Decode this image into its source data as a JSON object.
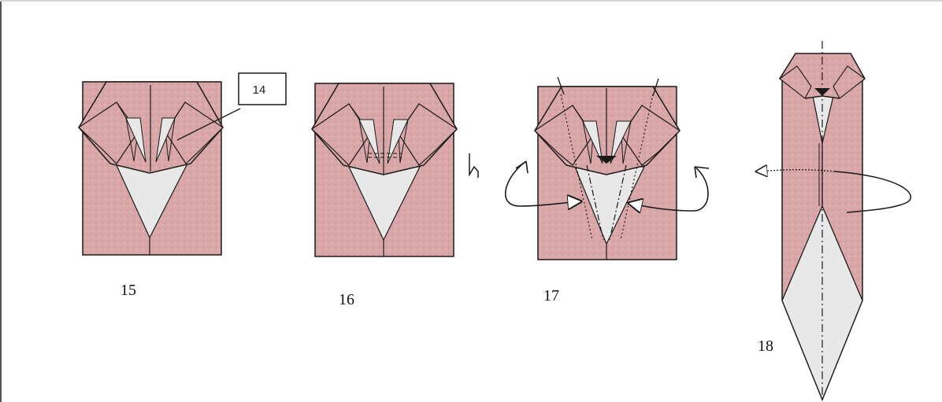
{
  "colors": {
    "paper_pink": "#d9a7a8",
    "paper_white": "#e8e8e8",
    "outline": "#1a1a1a",
    "background": "#ffffff"
  },
  "steps": [
    {
      "number": "15"
    },
    {
      "number": "16"
    },
    {
      "number": "17"
    },
    {
      "number": "18"
    }
  ],
  "reference_box": {
    "label": "14"
  },
  "symbols": {
    "step15": [
      "reference-callout"
    ],
    "step16": [
      "pleat-fold-dashed-lines",
      "pleat-symbol"
    ],
    "step17": [
      "mountain-fold-lines",
      "valley-fold-lines",
      "reverse-fold-arrow-left",
      "reverse-fold-arrow-right",
      "rotate-arrow-left",
      "rotate-arrow-right"
    ],
    "step18": [
      "center-axis-line",
      "turn-over-arrow"
    ]
  }
}
